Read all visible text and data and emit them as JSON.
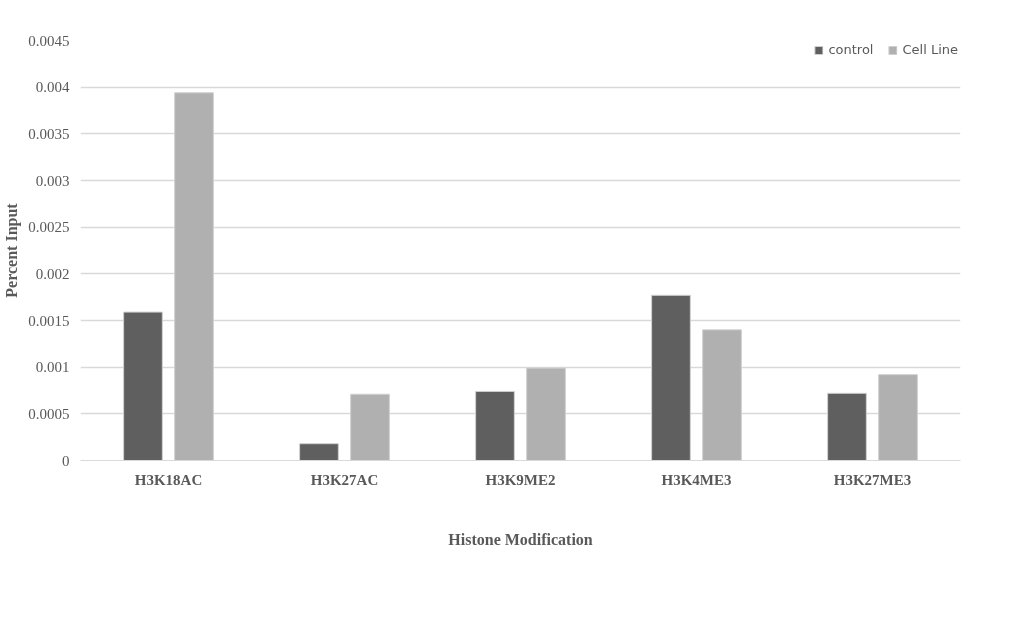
{
  "chart_data": {
    "type": "bar",
    "xlabel": "Histone Modification",
    "ylabel": "Percent Input",
    "categories": [
      "H3K18AC",
      "H3K27AC",
      "H3K9ME2",
      "H3K4ME3",
      "H3K27ME3"
    ],
    "series": [
      {
        "name": "control",
        "color": "#5f5f5f",
        "values": [
          0.00159,
          0.00018,
          0.00074,
          0.00177,
          0.00072
        ]
      },
      {
        "name": "Cell Line",
        "color": "#b0b0b0",
        "values": [
          0.00394,
          0.00071,
          0.00099,
          0.0014,
          0.00092
        ]
      }
    ],
    "ylim": [
      0,
      0.0045
    ],
    "yticks": [
      0,
      0.0005,
      0.001,
      0.0015,
      0.002,
      0.0025,
      0.003,
      0.0035,
      0.004,
      0.0045
    ],
    "grid": "y",
    "legend": "top right"
  }
}
